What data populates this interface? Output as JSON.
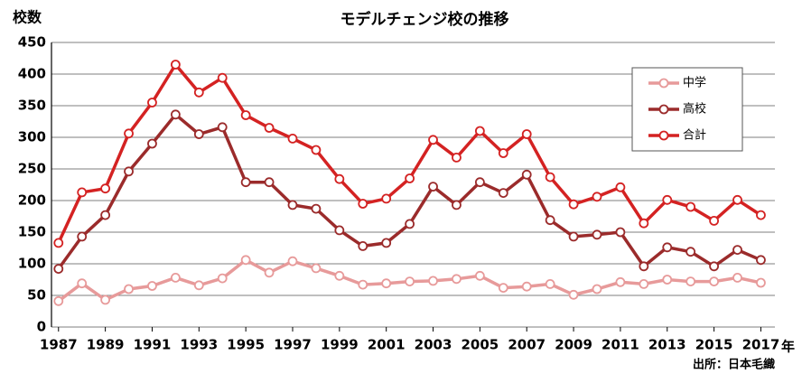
{
  "chart_data": {
    "type": "line",
    "title": "モデルチェンジ校の推移",
    "y_label": "校数",
    "x_unit": "年",
    "source": "出所：日本毛織",
    "x": [
      1987,
      1988,
      1989,
      1990,
      1991,
      1992,
      1993,
      1994,
      1995,
      1996,
      1997,
      1998,
      1999,
      2000,
      2001,
      2002,
      2003,
      2004,
      2005,
      2006,
      2007,
      2008,
      2009,
      2010,
      2011,
      2012,
      2013,
      2014,
      2015,
      2016,
      2017
    ],
    "series": [
      {
        "name": "中学",
        "color": "#e79a9a",
        "values": [
          41,
          69,
          43,
          60,
          65,
          78,
          66,
          77,
          106,
          86,
          104,
          93,
          81,
          67,
          69,
          72,
          73,
          76,
          81,
          62,
          64,
          68,
          51,
          60,
          71,
          68,
          75,
          72,
          72,
          78,
          70
        ]
      },
      {
        "name": "高校",
        "color": "#9b2b2b",
        "values": [
          92,
          143,
          177,
          246,
          290,
          336,
          305,
          316,
          229,
          229,
          193,
          187,
          153,
          128,
          133,
          163,
          222,
          193,
          229,
          212,
          241,
          169,
          143,
          146,
          150,
          96,
          126,
          119,
          96,
          122,
          106
        ]
      },
      {
        "name": "合計",
        "color": "#d42222",
        "values": [
          133,
          213,
          219,
          306,
          355,
          415,
          371,
          394,
          335,
          315,
          298,
          280,
          234,
          195,
          203,
          235,
          296,
          268,
          310,
          275,
          305,
          237,
          194,
          206,
          221,
          164,
          201,
          190,
          168,
          201,
          177
        ]
      }
    ],
    "xlim": [
      1986.7,
      2017.6
    ],
    "xticks": [
      1987,
      1989,
      1991,
      1993,
      1995,
      1997,
      1999,
      2001,
      2003,
      2005,
      2007,
      2009,
      2011,
      2013,
      2015,
      2017
    ],
    "ylim": [
      0,
      450
    ],
    "yticks": [
      0,
      50,
      100,
      150,
      200,
      250,
      300,
      350,
      400,
      450
    ],
    "grid": true,
    "legend": "upper right"
  }
}
